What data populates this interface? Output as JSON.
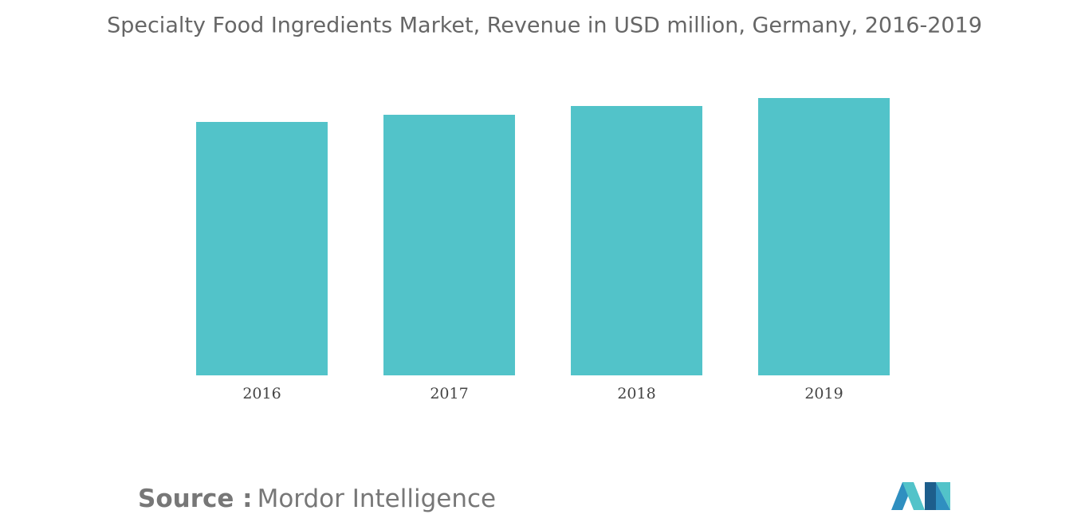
{
  "chart_data": {
    "type": "bar",
    "title": "Specialty Food Ingredients Market, Revenue in USD million, Germany, 2016-2019",
    "categories": [
      "2016",
      "2017",
      "2018",
      "2019"
    ],
    "values": [
      318,
      327,
      338,
      348
    ],
    "color": "#52c3c9",
    "ylim": [
      0,
      348
    ],
    "source_label": "Source :",
    "source_name": "Mordor Intelligence"
  }
}
